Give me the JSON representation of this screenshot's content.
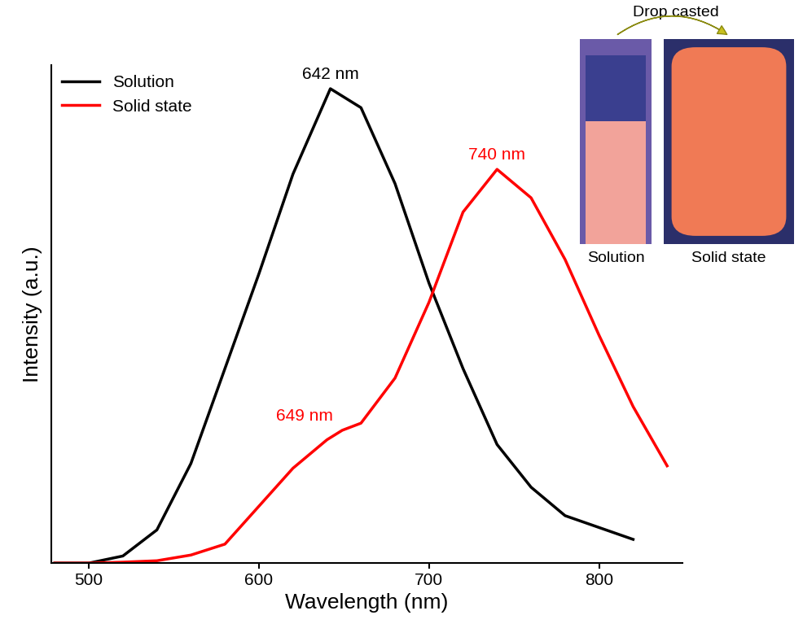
{
  "chart_data": {
    "type": "line",
    "x_label": "Wavelength (nm)",
    "y_label": "Intensity (a.u.)",
    "xlim": [
      478,
      849
    ],
    "xticks": [
      500,
      600,
      700,
      800
    ],
    "ylim": [
      0,
      1.05
    ],
    "yticks": [],
    "tick_labels": "x",
    "legend": "upper left",
    "series": [
      {
        "name": "Solution",
        "color": "#000000",
        "x": [
          480,
          500,
          520,
          540,
          560,
          580,
          600,
          620,
          642,
          660,
          680,
          700,
          720,
          740,
          760,
          780,
          800,
          820
        ],
        "values": [
          0.0,
          0.0,
          0.015,
          0.07,
          0.21,
          0.41,
          0.61,
          0.82,
          1.0,
          0.96,
          0.8,
          0.59,
          0.41,
          0.25,
          0.16,
          0.1,
          0.075,
          0.05
        ]
      },
      {
        "name": "Solid state",
        "color": "#ff0000",
        "x": [
          480,
          500,
          520,
          540,
          560,
          580,
          600,
          620,
          640,
          649,
          660,
          680,
          700,
          720,
          740,
          760,
          780,
          800,
          820,
          840
        ],
        "values": [
          0.0,
          0.0,
          0.002,
          0.005,
          0.017,
          0.04,
          0.12,
          0.2,
          0.26,
          0.28,
          0.295,
          0.39,
          0.55,
          0.74,
          0.83,
          0.77,
          0.64,
          0.48,
          0.33,
          0.205
        ]
      }
    ],
    "annotations": [
      {
        "text": "642 nm",
        "x": 642,
        "y": 1.0,
        "color": "#000000"
      },
      {
        "text": "740 nm",
        "x": 740,
        "y": 0.83,
        "color": "#ff0000"
      },
      {
        "text": "649 nm",
        "x": 649,
        "y": 0.28,
        "color": "#ff0000"
      }
    ],
    "inset": {
      "title": "Drop casted",
      "labels": [
        "Solution",
        "Solid state"
      ]
    }
  }
}
